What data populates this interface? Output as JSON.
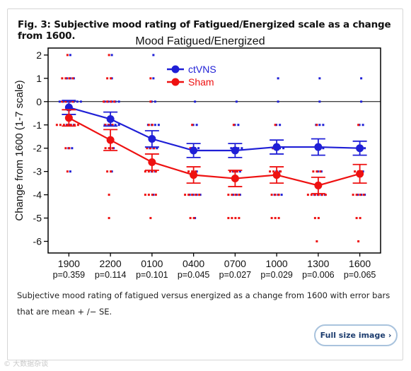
{
  "figure": {
    "title": "Fig. 3: Subjective mood rating of Fatigued/Energized scale as a change from 1600.",
    "caption": "Subjective mood rating of fatigued versus energized as a change from 1600 with error bars that are mean + /− SE.",
    "full_size_label": "Full size image",
    "full_size_icon": "chevron-right-icon",
    "watermark": "© 大数据杂谈"
  },
  "chart_data": {
    "type": "line",
    "title": "Mood  Fatigued/Energized",
    "ylabel": "Change from 1600 (1-7 scale)",
    "xlabel": "",
    "categories": [
      "1900",
      "2200",
      "0100",
      "0400",
      "0700",
      "1000",
      "1300",
      "1600"
    ],
    "p_values": [
      "p=0.359",
      "p=0.114",
      "p=0.101",
      "p=0.045",
      "p=0.027",
      "p=0.029",
      "p=0.006",
      "p=0.065"
    ],
    "ylim": [
      -6.5,
      2.3
    ],
    "yticks": [
      2,
      1,
      0,
      -1,
      -2,
      -3,
      -4,
      -5,
      -6
    ],
    "zero_line": true,
    "legend_position": "top-center",
    "series": [
      {
        "name": "ctVNS",
        "color": "#1f1fd6",
        "values": [
          -0.25,
          -0.75,
          -1.6,
          -2.1,
          -2.1,
          -1.95,
          -1.95,
          -2.0
        ],
        "se": [
          0.3,
          0.3,
          0.35,
          0.3,
          0.3,
          0.3,
          0.35,
          0.3
        ],
        "individual": [
          [
            1,
            1,
            1,
            0,
            0,
            0,
            0,
            0,
            0,
            0,
            -1,
            -1,
            -1,
            -2,
            -2,
            -3,
            2
          ],
          [
            2,
            1,
            0,
            0,
            0,
            0,
            0,
            -1,
            -1,
            -1,
            -1,
            -1,
            -2,
            -2,
            -3
          ],
          [
            2,
            1,
            0,
            0,
            -1,
            -1,
            -1,
            -1,
            -2,
            -2,
            -2,
            -3,
            -3,
            -4
          ],
          [
            0,
            -1,
            -1,
            -2,
            -2,
            -2,
            -3,
            -3,
            -4,
            -4,
            -4,
            -4,
            -5
          ],
          [
            0,
            -1,
            -1,
            -2,
            -2,
            -2,
            -2,
            -3,
            -3,
            -3,
            -4,
            -4,
            -4
          ],
          [
            1,
            0,
            -1,
            -1,
            -2,
            -2,
            -2,
            -2,
            -3,
            -3,
            -4,
            -4,
            -4
          ],
          [
            1,
            0,
            -1,
            -1,
            -1,
            -2,
            -2,
            -2,
            -3,
            -3,
            -4,
            -4,
            -4,
            -4
          ],
          [
            1,
            0,
            -1,
            -1,
            -2,
            -2,
            -2,
            -3,
            -3,
            -4,
            -4,
            -4
          ]
        ]
      },
      {
        "name": "Sham",
        "color": "#ee1111",
        "values": [
          -0.7,
          -1.65,
          -2.6,
          -3.15,
          -3.3,
          -3.15,
          -3.6,
          -3.1
        ],
        "se": [
          0.35,
          0.45,
          0.35,
          0.35,
          0.35,
          0.35,
          0.35,
          0.4
        ],
        "individual": [
          [
            2,
            1,
            1,
            1,
            1,
            0,
            0,
            0,
            0,
            -1,
            -1,
            -1,
            -1,
            -1,
            -1,
            -1,
            -2,
            -2,
            -3
          ],
          [
            2,
            1,
            1,
            0,
            0,
            0,
            0,
            -1,
            -1,
            -1,
            -2,
            -2,
            -2,
            -3,
            -3,
            -4,
            -5
          ],
          [
            1,
            0,
            -1,
            -1,
            -2,
            -2,
            -2,
            -3,
            -3,
            -3,
            -3,
            -4,
            -4,
            -4,
            -4,
            -5
          ],
          [
            -1,
            -2,
            -2,
            -3,
            -3,
            -3,
            -4,
            -4,
            -4,
            -4,
            -4,
            -5,
            -5
          ],
          [
            -1,
            -2,
            -3,
            -3,
            -3,
            -4,
            -4,
            -4,
            -4,
            -5,
            -5,
            -5,
            -5
          ],
          [
            -1,
            -2,
            -2,
            -3,
            -3,
            -3,
            -3,
            -4,
            -4,
            -4,
            -5,
            -5,
            -5
          ],
          [
            -1,
            -2,
            -3,
            -3,
            -3,
            -4,
            -4,
            -4,
            -4,
            -4,
            -4,
            -5,
            -5,
            -6
          ],
          [
            -1,
            -2,
            -3,
            -3,
            -3,
            -4,
            -4,
            -4,
            -4,
            -5,
            -5,
            -6
          ]
        ]
      }
    ]
  }
}
